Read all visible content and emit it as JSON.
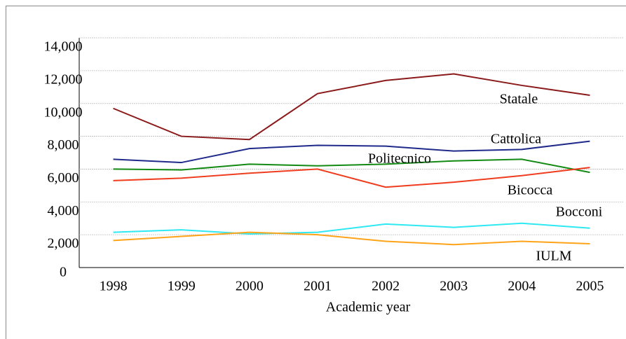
{
  "chart_data": {
    "type": "line",
    "x_label": "Academic year",
    "categories": [
      "1998",
      "1999",
      "2000",
      "2001",
      "2002",
      "2003",
      "2004",
      "2005"
    ],
    "series": [
      {
        "name": "Statale",
        "color": "#8b1a1a",
        "values": [
          9700,
          8000,
          7800,
          10600,
          11400,
          11800,
          11100,
          10500
        ]
      },
      {
        "name": "Cattolica",
        "color": "#1f2a8a",
        "values": [
          6600,
          6400,
          7250,
          7450,
          7400,
          7100,
          7200,
          7700
        ]
      },
      {
        "name": "Politecnico",
        "color": "#138a13",
        "values": [
          6000,
          5950,
          6300,
          6200,
          6300,
          6500,
          6600,
          5800
        ]
      },
      {
        "name": "Bicocca",
        "color": "#f03c1e",
        "values": [
          5300,
          5450,
          5750,
          6000,
          4900,
          5200,
          5600,
          6100
        ]
      },
      {
        "name": "Bocconi",
        "color": "#2ee8f2",
        "values": [
          2150,
          2300,
          2050,
          2150,
          2650,
          2450,
          2700,
          2400
        ]
      },
      {
        "name": "IULM",
        "color": "#ffa319",
        "values": [
          1650,
          1900,
          2150,
          2000,
          1600,
          1400,
          1600,
          1450
        ]
      }
    ],
    "ylim": [
      0,
      14000
    ],
    "yticks": [
      0,
      {
        "value": 2000,
        "label": "2,000"
      },
      {
        "value": 4000,
        "label": "4,000"
      },
      {
        "value": 6000,
        "label": "6,000"
      },
      {
        "value": 8000,
        "label": "8,000"
      },
      {
        "value": 10000,
        "label": "10,000"
      },
      {
        "value": 12000,
        "label": "12,000"
      },
      {
        "value": 14000,
        "label": "14,000"
      }
    ],
    "grid": true
  }
}
